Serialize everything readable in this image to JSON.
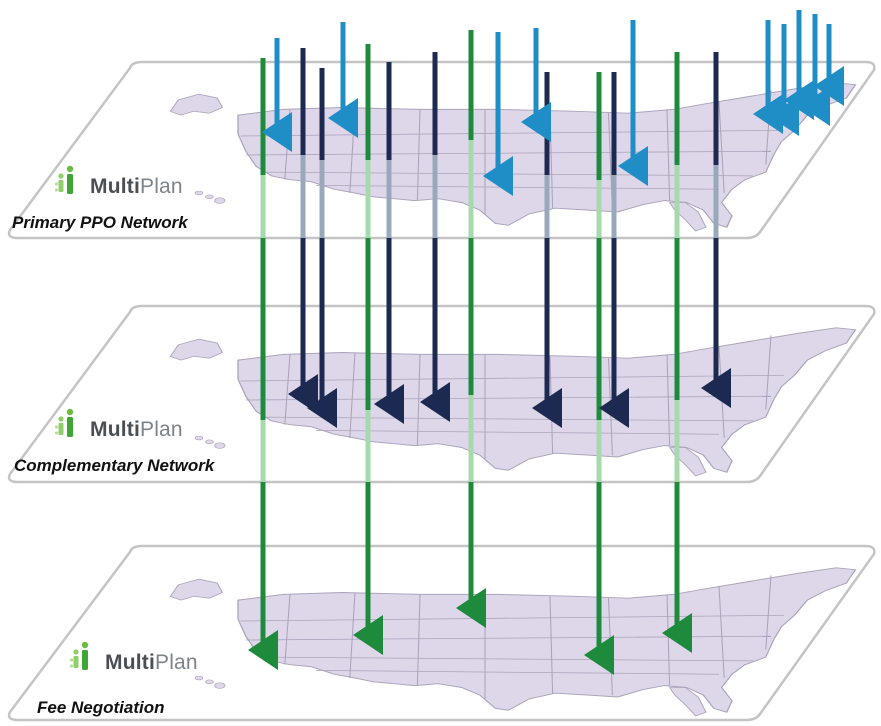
{
  "layers": [
    {
      "id": "primary",
      "label": "Primary PPO Network",
      "logo": {
        "bold": "Multi",
        "light": "Plan"
      }
    },
    {
      "id": "complementary",
      "label": "Complementary Network",
      "logo": {
        "bold": "Multi",
        "light": "Plan"
      }
    },
    {
      "id": "fee",
      "label": "Fee Negotiation",
      "logo": {
        "bold": "Multi",
        "light": "Plan"
      }
    }
  ],
  "colors": {
    "map_fill": "#ded7ea",
    "map_border": "#aaa3bb",
    "plate_border": "#c4c4c4",
    "green_arrow": "#1e8a3c",
    "green_faded": "#a7d9ae",
    "navy_arrow": "#1c2a52",
    "navy_faded": "#9aa8bb",
    "blue_arrow": "#1f8dc6",
    "logo_green": "#6dbb45"
  },
  "icons": [
    "multiplan-logo-icon",
    "arrow-down-icon"
  ]
}
